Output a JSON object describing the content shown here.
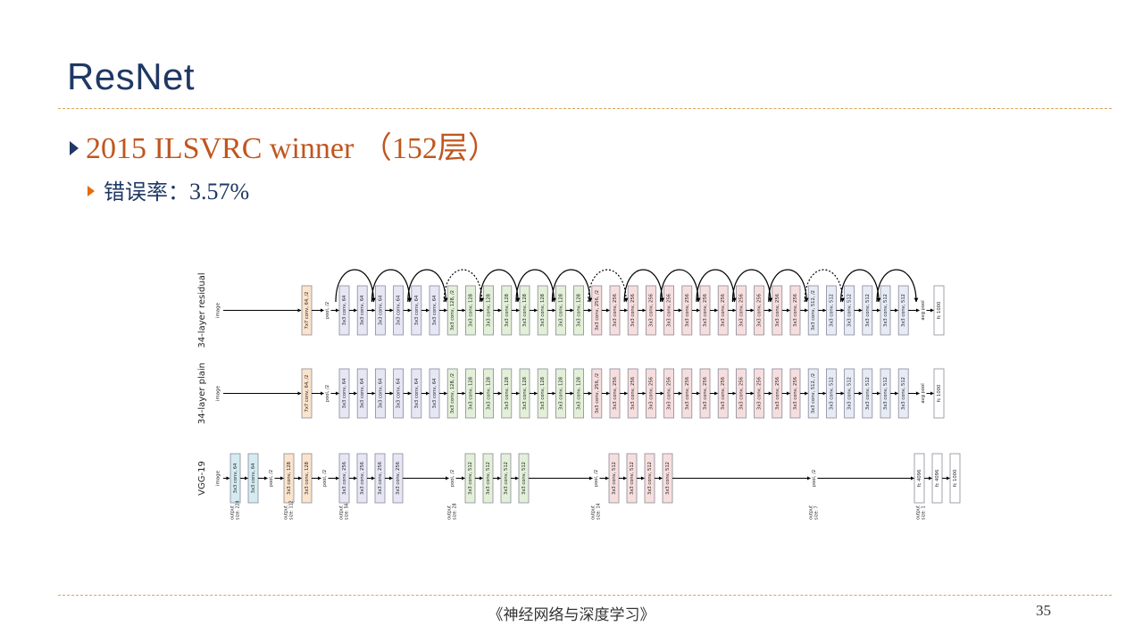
{
  "slide": {
    "title": "ResNet",
    "bullet1": "2015 ILSVRC winner （152层）",
    "bullet2_label": "错误率：",
    "bullet2_value": "3.57%",
    "footer": "《神经网络与深度学习》",
    "page_number": "35"
  },
  "figure": {
    "rows": [
      {
        "name": "34-layer residual",
        "input": "image",
        "blocks": [
          "7x7 conv, 64, /2",
          "pool, /2",
          "3x3 conv, 64",
          "3x3 conv, 64",
          "3x3 conv, 64",
          "3x3 conv, 64",
          "3x3 conv, 64",
          "3x3 conv, 64",
          "3x3 conv, 128, /2",
          "3x3 conv, 128",
          "3x3 conv, 128",
          "3x3 conv, 128",
          "3x3 conv, 128",
          "3x3 conv, 128",
          "3x3 conv, 128",
          "3x3 conv, 128",
          "3x3 conv, 256, /2",
          "3x3 conv, 256",
          "3x3 conv, 256",
          "3x3 conv, 256",
          "3x3 conv, 256",
          "3x3 conv, 256",
          "3x3 conv, 256",
          "3x3 conv, 256",
          "3x3 conv, 256",
          "3x3 conv, 256",
          "3x3 conv, 256",
          "3x3 conv, 256",
          "3x3 conv, 512, /2",
          "3x3 conv, 512",
          "3x3 conv, 512",
          "3x3 conv, 512",
          "3x3 conv, 512",
          "3x3 conv, 512",
          "avg pool",
          "fc 1000"
        ]
      },
      {
        "name": "34-layer plain",
        "input": "image",
        "blocks": [
          "7x7 conv, 64, /2",
          "pool, /2",
          "3x3 conv, 64",
          "3x3 conv, 64",
          "3x3 conv, 64",
          "3x3 conv, 64",
          "3x3 conv, 64",
          "3x3 conv, 64",
          "3x3 conv, 128, /2",
          "3x3 conv, 128",
          "3x3 conv, 128",
          "3x3 conv, 128",
          "3x3 conv, 128",
          "3x3 conv, 128",
          "3x3 conv, 128",
          "3x3 conv, 128",
          "3x3 conv, 256, /2",
          "3x3 conv, 256",
          "3x3 conv, 256",
          "3x3 conv, 256",
          "3x3 conv, 256",
          "3x3 conv, 256",
          "3x3 conv, 256",
          "3x3 conv, 256",
          "3x3 conv, 256",
          "3x3 conv, 256",
          "3x3 conv, 256",
          "3x3 conv, 256",
          "3x3 conv, 512, /2",
          "3x3 conv, 512",
          "3x3 conv, 512",
          "3x3 conv, 512",
          "3x3 conv, 512",
          "3x3 conv, 512",
          "avg pool",
          "fc 1000"
        ]
      },
      {
        "name": "VGG-19",
        "input": "image",
        "blocks": [
          "3x3 conv, 64",
          "3x3 conv, 64",
          "pool, /2",
          "3x3 conv, 128",
          "3x3 conv, 128",
          "pool, /2",
          "3x3 conv, 256",
          "3x3 conv, 256",
          "3x3 conv, 256",
          "3x3 conv, 256",
          "pool, /2",
          "3x3 conv, 512",
          "3x3 conv, 512",
          "3x3 conv, 512",
          "3x3 conv, 512",
          "pool, /2",
          "3x3 conv, 512",
          "3x3 conv, 512",
          "3x3 conv, 512",
          "3x3 conv, 512",
          "pool, /2",
          "fc 4096",
          "fc 4096",
          "fc 1000"
        ],
        "output_sizes": [
          "output size: 224",
          "output size: 112",
          "output size: 56",
          "output size: 28",
          "output size: 14",
          "output size: 7",
          "output size: 1"
        ]
      }
    ],
    "colors": {
      "c64": "#e6e6f5",
      "c128": "#e3f0d8",
      "c256": "#f7dede",
      "c512": "#e6ebf5",
      "c7x7": "#fbe3cc",
      "vgg64": "#d4ebf2",
      "vgg128": "#fbe3cc",
      "white": "#ffffff",
      "border": "#8a8a9a",
      "line": "#000000"
    }
  }
}
